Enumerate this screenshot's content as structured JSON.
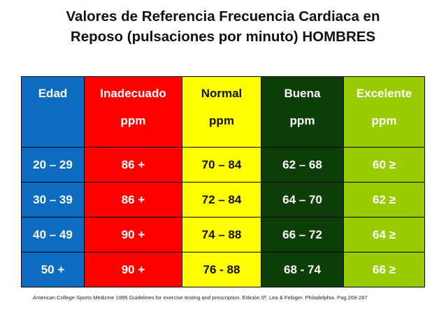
{
  "title": {
    "line1": "Valores de Referencia Frecuencia Cardiaca en",
    "line2": "Reposo (pulsaciones por minuto) HOMBRES"
  },
  "table": {
    "headers": [
      {
        "label": "Edad",
        "unit": ""
      },
      {
        "label": "Inadecuado",
        "unit": "ppm"
      },
      {
        "label": "Normal",
        "unit": "ppm"
      },
      {
        "label": "Buena",
        "unit": "ppm"
      },
      {
        "label": "Excelente",
        "unit": "ppm"
      }
    ],
    "rows": [
      [
        "20 – 29",
        "86 +",
        "70 – 84",
        "62 – 68",
        "60 ≥"
      ],
      [
        "30 – 39",
        "86 +",
        "72 – 84",
        "64 – 70",
        "62 ≥"
      ],
      [
        "40 – 49",
        "90 +",
        "74 – 88",
        "66 – 72",
        "64 ≥"
      ],
      [
        "50 +",
        "90 +",
        "76 - 88",
        "68 - 74",
        "66 ≥"
      ]
    ]
  },
  "colors": {
    "edad": "#0d6cc0",
    "inadecuado": "#ff0000",
    "normal": "#ffff00",
    "buena": "#0d3d08",
    "excelente": "#99cc00"
  },
  "footnote": "American College Sports Medicine 1995 Guidelines  for exercise testing and prescription. Edición 5ª. Lea & Febiger. Philadelphia. Pag 269-287"
}
